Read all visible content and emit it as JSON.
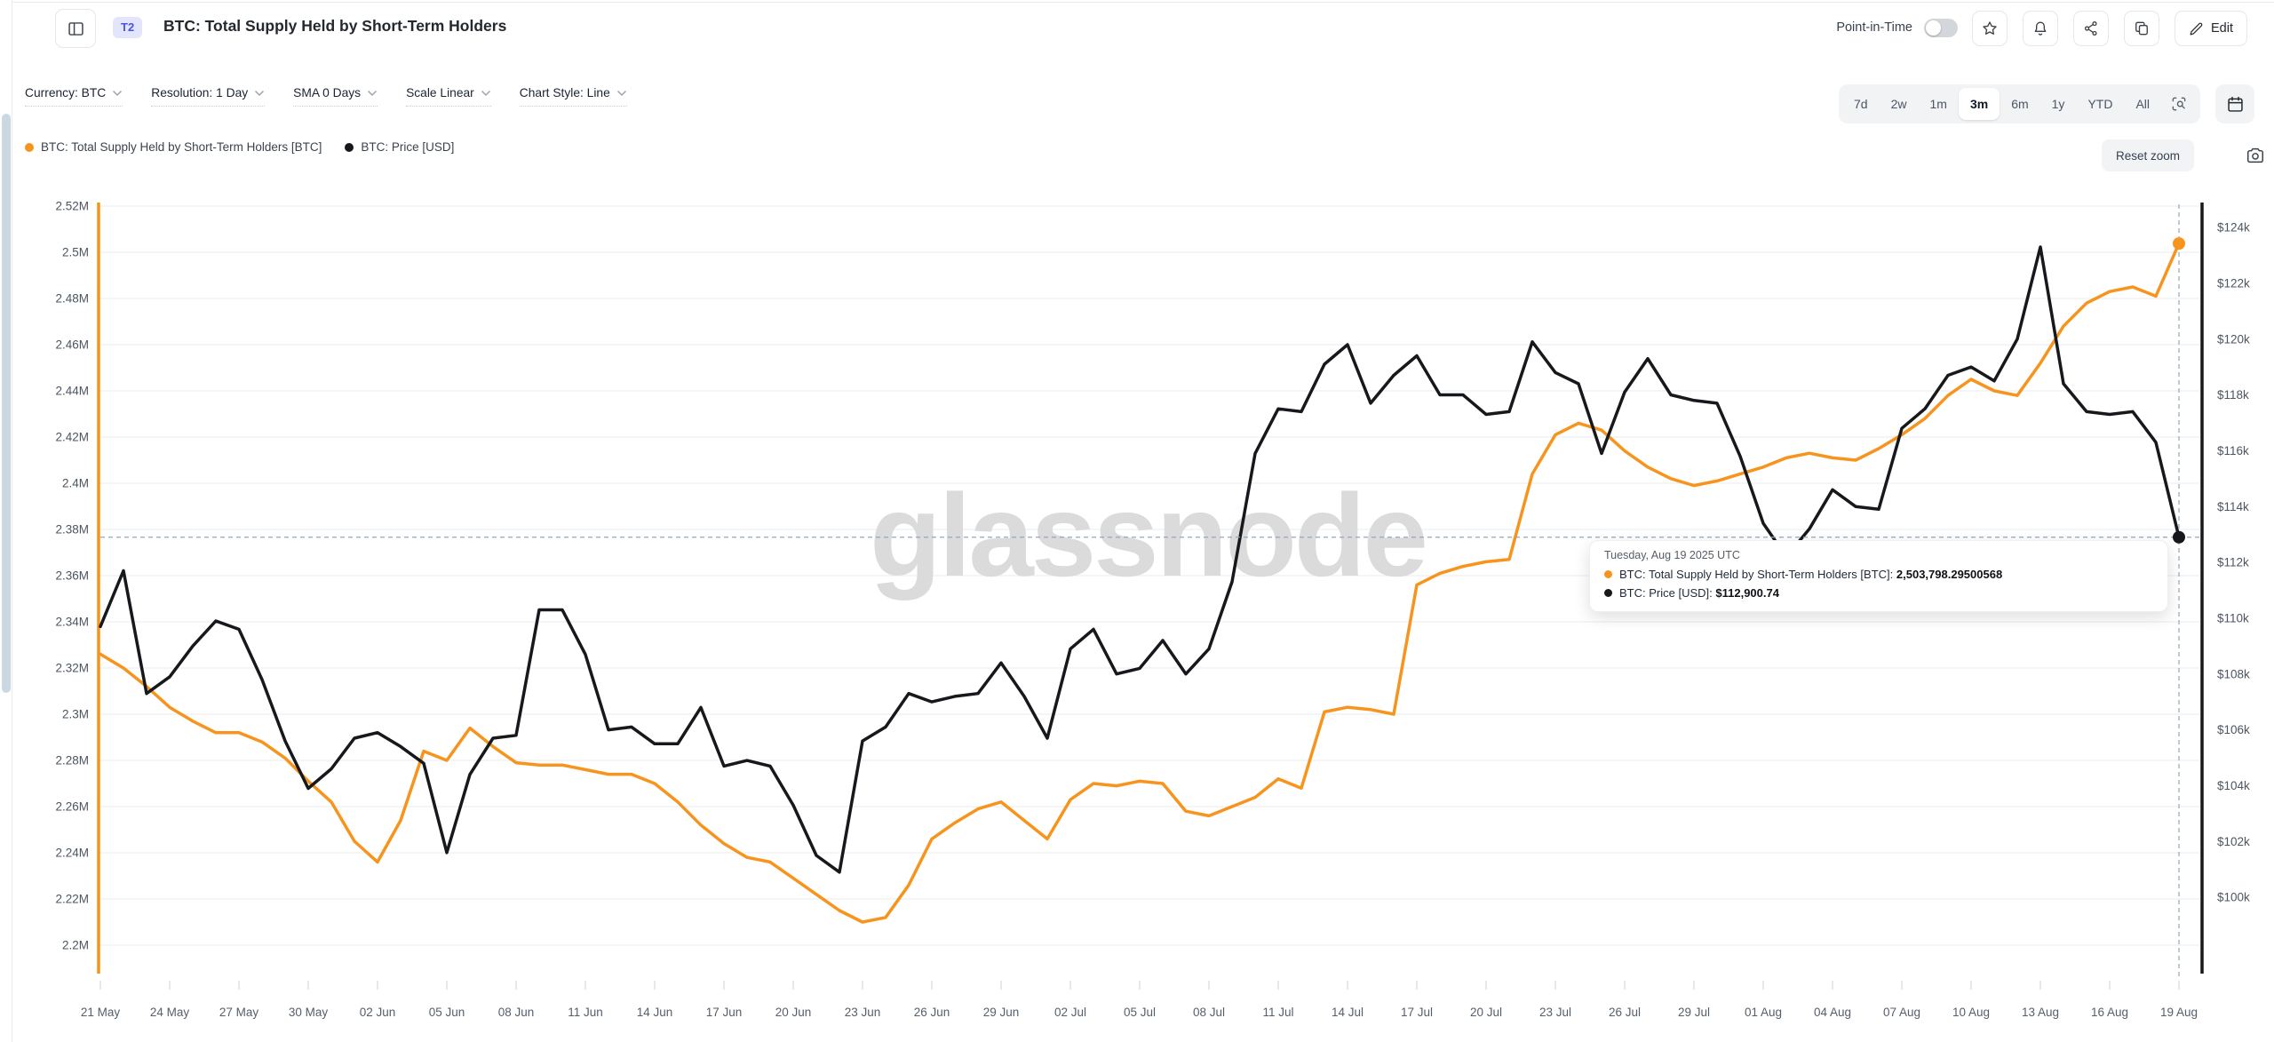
{
  "header": {
    "badge": "T2",
    "title": "BTC: Total Supply Held by Short-Term Holders",
    "point_in_time_label": "Point-in-Time",
    "point_in_time_state": "off",
    "edit_label": "Edit"
  },
  "icons": {
    "sidebar_toggle": "panel-left-icon",
    "favorite": "star-icon",
    "alerts": "bell-icon",
    "share": "share-icon",
    "duplicate": "copy-icon",
    "edit": "pencil-icon",
    "zoom_area": "area-zoom-icon",
    "date_range": "calendar-icon",
    "screenshot": "camera-icon"
  },
  "toolbar": {
    "dropdowns": [
      {
        "label": "Currency: BTC"
      },
      {
        "label": "Resolution: 1 Day"
      },
      {
        "label": "SMA 0 Days"
      },
      {
        "label": "Scale Linear"
      },
      {
        "label": "Chart Style: Line"
      }
    ],
    "ranges": [
      "7d",
      "2w",
      "1m",
      "3m",
      "6m",
      "1y",
      "YTD",
      "All"
    ],
    "active_range": "3m",
    "reset_zoom_label": "Reset zoom"
  },
  "legend": [
    {
      "label": "BTC: Total Supply Held by Short-Term Holders [BTC]",
      "color": "#f7941d"
    },
    {
      "label": "BTC: Price [USD]",
      "color": "#17181c"
    }
  ],
  "watermark": "glassnode",
  "tooltip": {
    "title": "Tuesday, Aug 19 2025 UTC",
    "rows": [
      {
        "label": "BTC: Total Supply Held by Short-Term Holders [BTC]:",
        "value": "2,503,798.29500568",
        "color": "#f7941d"
      },
      {
        "label": "BTC: Price [USD]:",
        "value": "$112,900.74",
        "color": "#17181c"
      }
    ]
  },
  "chart_data": {
    "type": "line",
    "title": "BTC: Total Supply Held by Short-Term Holders",
    "x_start": "2025-05-21",
    "x_end": "2025-08-19",
    "x_tick_labels": [
      "21 May",
      "24 May",
      "27 May",
      "30 May",
      "02 Jun",
      "05 Jun",
      "08 Jun",
      "11 Jun",
      "14 Jun",
      "17 Jun",
      "20 Jun",
      "23 Jun",
      "26 Jun",
      "29 Jun",
      "02 Jul",
      "05 Jul",
      "08 Jul",
      "11 Jul",
      "14 Jul",
      "17 Jul",
      "20 Jul",
      "23 Jul",
      "26 Jul",
      "29 Jul",
      "01 Aug",
      "04 Aug",
      "07 Aug",
      "10 Aug",
      "13 Aug",
      "16 Aug",
      "19 Aug"
    ],
    "x_label_every_days": 3,
    "grid": "horizontal",
    "left_axis": {
      "title": "Supply held by short-term holders [M BTC]",
      "color": "#f7941d",
      "min": 2.2,
      "max": 2.52,
      "ticks": [
        "2.52M",
        "2.5M",
        "2.48M",
        "2.46M",
        "2.44M",
        "2.42M",
        "2.4M",
        "2.38M",
        "2.36M",
        "2.34M",
        "2.32M",
        "2.3M",
        "2.28M",
        "2.26M",
        "2.24M",
        "2.22M",
        "2.2M"
      ]
    },
    "right_axis": {
      "title": "BTC price [USD, k]",
      "color": "#17181c",
      "min": 100,
      "max": 124,
      "ticks": [
        "$124k",
        "$122k",
        "$120k",
        "$118k",
        "$116k",
        "$114k",
        "$112k",
        "$110k",
        "$108k",
        "$106k",
        "$104k",
        "$102k",
        "$100k"
      ]
    },
    "series": [
      {
        "name": "BTC: Total Supply Held by Short-Term Holders [BTC]",
        "axis": "left",
        "color": "#f7941d",
        "unit": "M BTC",
        "values": [
          2.326,
          2.32,
          2.312,
          2.303,
          2.297,
          2.292,
          2.292,
          2.288,
          2.281,
          2.271,
          2.262,
          2.245,
          2.236,
          2.254,
          2.284,
          2.28,
          2.294,
          2.286,
          2.279,
          2.278,
          2.278,
          2.276,
          2.274,
          2.274,
          2.27,
          2.262,
          2.252,
          2.244,
          2.238,
          2.236,
          2.229,
          2.222,
          2.215,
          2.21,
          2.212,
          2.226,
          2.246,
          2.253,
          2.259,
          2.262,
          2.254,
          2.246,
          2.263,
          2.27,
          2.269,
          2.271,
          2.27,
          2.258,
          2.256,
          2.26,
          2.264,
          2.272,
          2.268,
          2.301,
          2.303,
          2.302,
          2.3,
          2.356,
          2.361,
          2.364,
          2.366,
          2.367,
          2.404,
          2.421,
          2.426,
          2.423,
          2.414,
          2.407,
          2.402,
          2.399,
          2.401,
          2.404,
          2.407,
          2.411,
          2.413,
          2.411,
          2.41,
          2.415,
          2.421,
          2.428,
          2.438,
          2.445,
          2.44,
          2.438,
          2.452,
          2.468,
          2.478,
          2.483,
          2.485,
          2.481,
          2.5038
        ]
      },
      {
        "name": "BTC: Price [USD]",
        "axis": "right",
        "color": "#17181c",
        "unit": "$k",
        "values": [
          109.7,
          111.7,
          107.3,
          107.9,
          109.0,
          109.9,
          109.6,
          107.8,
          105.6,
          103.9,
          104.6,
          105.7,
          105.9,
          105.4,
          104.8,
          101.6,
          104.4,
          105.7,
          105.8,
          110.3,
          110.3,
          108.7,
          106.0,
          106.1,
          105.5,
          105.5,
          106.8,
          104.7,
          104.9,
          104.7,
          103.3,
          101.5,
          100.9,
          105.6,
          106.1,
          107.3,
          107.0,
          107.2,
          107.3,
          108.4,
          107.2,
          105.7,
          108.9,
          109.6,
          108.0,
          108.2,
          109.2,
          108.0,
          108.9,
          111.3,
          115.9,
          117.5,
          117.4,
          119.1,
          119.8,
          117.7,
          118.7,
          119.4,
          118.0,
          118.0,
          117.3,
          117.4,
          119.9,
          118.8,
          118.4,
          115.9,
          118.1,
          119.3,
          118.0,
          117.8,
          117.7,
          115.8,
          113.4,
          112.2,
          113.2,
          114.6,
          114.0,
          113.9,
          116.8,
          117.5,
          118.7,
          119.0,
          118.5,
          120.0,
          123.3,
          118.4,
          117.4,
          117.3,
          117.4,
          116.3,
          112.90074
        ]
      }
    ],
    "crosshair": {
      "date": "2025-08-19",
      "supply": 2.5037983,
      "price": 112.90074
    }
  }
}
